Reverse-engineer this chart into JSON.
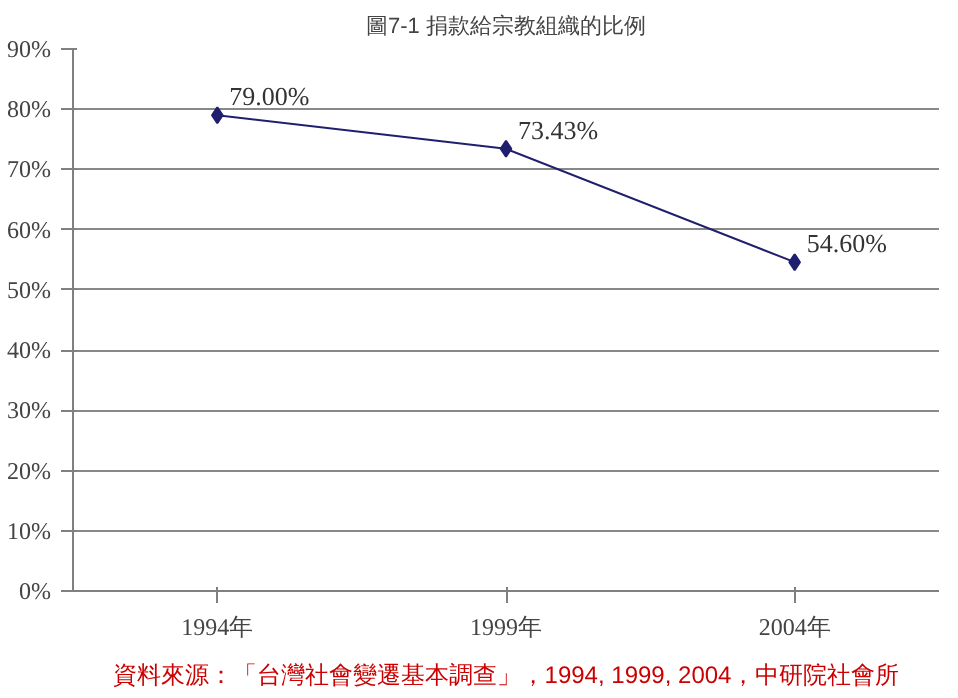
{
  "chart_data": {
    "type": "line",
    "title": "圖7-1 捐款給宗教組織的比例",
    "categories": [
      "1994年",
      "1999年",
      "2004年"
    ],
    "series": [
      {
        "color": "#1f1f6e",
        "values": [
          79.0,
          73.43,
          54.6
        ],
        "value_labels": [
          "79.00%",
          "73.43%",
          "54.60%"
        ]
      }
    ],
    "ylim": [
      0,
      90
    ],
    "yticks": [
      {
        "value": 0,
        "label": "0%"
      },
      {
        "value": 10,
        "label": "10%"
      },
      {
        "value": 20,
        "label": "20%"
      },
      {
        "value": 30,
        "label": "30%"
      },
      {
        "value": 40,
        "label": "40%"
      },
      {
        "value": 50,
        "label": "50%"
      },
      {
        "value": 60,
        "label": "60%"
      },
      {
        "value": 70,
        "label": "70%"
      },
      {
        "value": 80,
        "label": "80%"
      },
      {
        "value": 90,
        "label": "90%"
      }
    ],
    "grid": "y",
    "marker": "diamond",
    "line_style": "solid",
    "annotations": [
      "資料來源：「台灣社會變遷基本調查」，1994, 1999, 2004，中研院社會所"
    ]
  }
}
